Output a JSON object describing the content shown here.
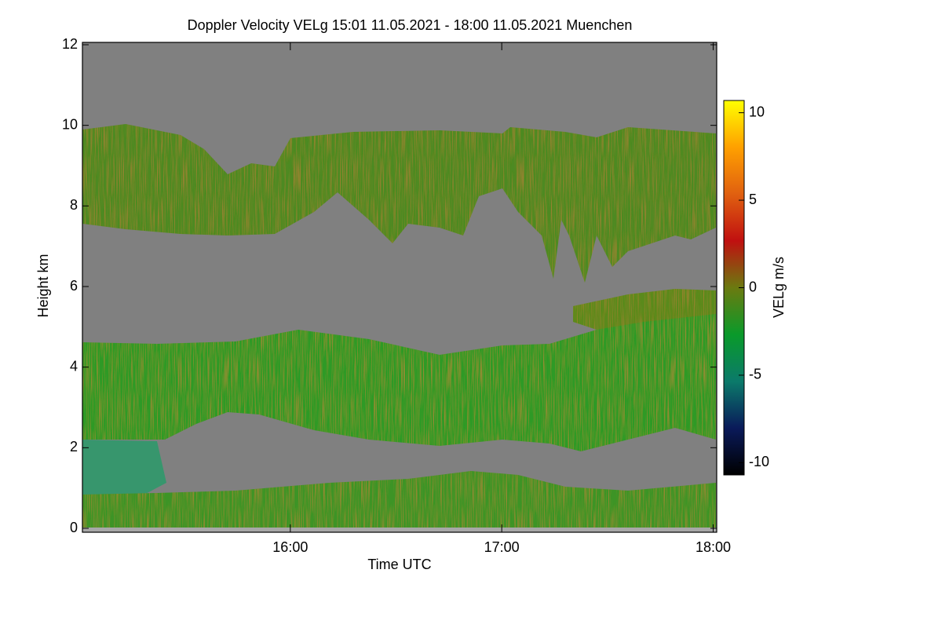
{
  "chart_data": {
    "type": "heatmap",
    "title": "Doppler Velocity VELg   15:01 11.05.2021 - 18:00 11.05.2021 Muenchen",
    "x_label": "Time UTC",
    "y_label": "Height km",
    "colorbar_label": "VELg m/s",
    "xlim": [
      15.0167,
      18.0167
    ],
    "xticks": [
      {
        "value": 16,
        "label": "16:00"
      },
      {
        "value": 17,
        "label": "17:00"
      },
      {
        "value": 18,
        "label": "18:00"
      }
    ],
    "ylim": [
      0,
      12
    ],
    "yticks": [
      0,
      2,
      4,
      6,
      8,
      10,
      12
    ],
    "zlim": [
      -10.7,
      10.7
    ],
    "zticks": [
      -10,
      -5,
      0,
      5,
      10
    ],
    "colormap": [
      "#000000",
      "#0a1a5a",
      "#0b7a6a",
      "#0a9a2a",
      "#6b7a10",
      "#c01010",
      "#e06010",
      "#ffa000",
      "#ffff00"
    ]
  }
}
